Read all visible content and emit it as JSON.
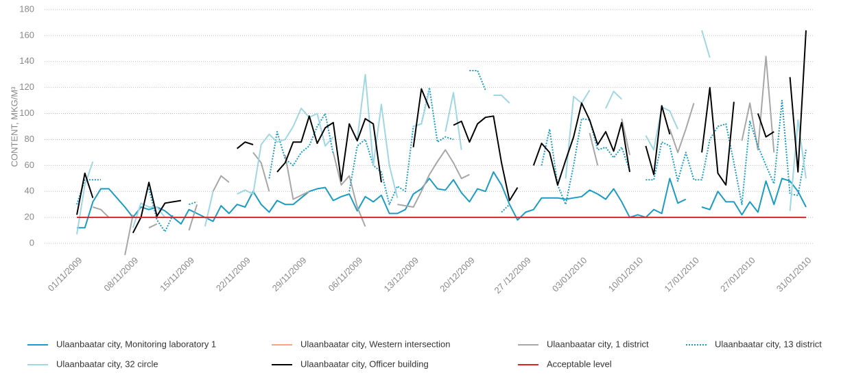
{
  "chart_data": {
    "type": "line",
    "y_label": "CONTENT, MKG/M³",
    "categories": [
      "01/11/2009",
      null,
      null,
      null,
      null,
      null,
      null,
      "08/11/2009",
      null,
      null,
      null,
      null,
      null,
      null,
      "15/11/2009",
      null,
      null,
      null,
      null,
      null,
      null,
      "22/11/2009",
      null,
      null,
      null,
      null,
      null,
      null,
      "29/11/2009",
      null,
      null,
      null,
      null,
      null,
      null,
      "06/11/2009",
      null,
      null,
      null,
      null,
      null,
      null,
      "13/12/2009",
      null,
      null,
      null,
      null,
      null,
      null,
      "20/12/2009",
      null,
      null,
      null,
      null,
      null,
      null,
      "27 /12/2009",
      null,
      null,
      null,
      null,
      null,
      null,
      "03/01/2010",
      null,
      null,
      null,
      null,
      null,
      null,
      "10/01/2010",
      null,
      null,
      null,
      null,
      null,
      null,
      "17/01/2010",
      null,
      null,
      null,
      null,
      null,
      null,
      "27/01/2010",
      null,
      null,
      null,
      null,
      null,
      null,
      "31/01/2010"
    ],
    "ylim": [
      0,
      180
    ],
    "yticks": [
      0,
      20,
      40,
      60,
      80,
      100,
      120,
      140,
      160,
      180
    ],
    "grid": true,
    "series": [
      {
        "name": "Ulaanbaatar city, Monitoring laboratory 1",
        "color": "#1a9bc4",
        "values": [
          12,
          12,
          32,
          42,
          42,
          35,
          28,
          20,
          28,
          26,
          28,
          25,
          20,
          15,
          26,
          23,
          20,
          17,
          29,
          23,
          30,
          28,
          40,
          30,
          24,
          33,
          30,
          30,
          35,
          40,
          42,
          43,
          33,
          36,
          38,
          25,
          36,
          32,
          37,
          23,
          23,
          26,
          38,
          42,
          50,
          42,
          41,
          49,
          39,
          32,
          42,
          40,
          55,
          45,
          30,
          18,
          24,
          26,
          35,
          35,
          35,
          34,
          35,
          36,
          41,
          38,
          34,
          42,
          32,
          20,
          22,
          20,
          26,
          23,
          50,
          31,
          34,
          null,
          28,
          26,
          40,
          32,
          32,
          22,
          32,
          24,
          48,
          30,
          50,
          48,
          40,
          28
        ]
      },
      {
        "name": "Ulaanbaatar city, Western intersection",
        "color": "#f4a582",
        "values": [
          null,
          null,
          null,
          null,
          null,
          null,
          null,
          null,
          null,
          null,
          null,
          null,
          null,
          null,
          null,
          null,
          null,
          null,
          null,
          null,
          null,
          null,
          null,
          null,
          null,
          null,
          null,
          null,
          null,
          null,
          null,
          null,
          null,
          null,
          null,
          null,
          null,
          null,
          null,
          null,
          null,
          null,
          null,
          null,
          null,
          null,
          null,
          null,
          null,
          null,
          null,
          null,
          null,
          null,
          null,
          null,
          null,
          null,
          null,
          null,
          null,
          null,
          null,
          null,
          null,
          null,
          null,
          null,
          null,
          null,
          null,
          null,
          null,
          null,
          null,
          null,
          null,
          null,
          null,
          null,
          null,
          null,
          null,
          null,
          null,
          null,
          null,
          null,
          null,
          null,
          null,
          null
        ]
      },
      {
        "name": "Ulaanbaatar city, 1 district",
        "color": "#a6a6a6",
        "values": [
          null,
          null,
          28,
          26,
          20,
          null,
          -9,
          22,
          null,
          12,
          15,
          null,
          null,
          null,
          10,
          30,
          null,
          40,
          52,
          47,
          null,
          null,
          70,
          62,
          40,
          null,
          68,
          34,
          37,
          40,
          null,
          null,
          70,
          45,
          52,
          28,
          13,
          null,
          null,
          null,
          30,
          29,
          28,
          40,
          53,
          63,
          72,
          62,
          50,
          53,
          null,
          null,
          null,
          null,
          null,
          null,
          null,
          null,
          null,
          null,
          null,
          null,
          null,
          null,
          85,
          60,
          null,
          null,
          96,
          68,
          null,
          null,
          null,
          null,
          88,
          70,
          88,
          108,
          null,
          null,
          null,
          null,
          null,
          79,
          108,
          72,
          144,
          70,
          null,
          72,
          null,
          42
        ]
      },
      {
        "name": "Ulaanbaatar city, 13 district",
        "color": "#1a9bc4",
        "dash": true,
        "values": [
          30,
          49,
          49,
          49,
          null,
          18,
          null,
          15,
          null,
          42,
          18,
          9,
          22,
          null,
          30,
          32,
          null,
          49,
          null,
          null,
          34,
          null,
          70,
          null,
          50,
          86,
          65,
          60,
          70,
          75,
          90,
          100,
          69,
          null,
          40,
          75,
          80,
          60,
          55,
          30,
          44,
          40,
          90,
          92,
          120,
          78,
          82,
          80,
          null,
          133,
          133,
          118,
          null,
          24,
          30,
          null,
          null,
          null,
          60,
          88,
          45,
          30,
          60,
          96,
          95,
          72,
          74,
          66,
          74,
          56,
          null,
          49,
          49,
          78,
          75,
          48,
          70,
          49,
          49,
          80,
          90,
          92,
          62,
          30,
          94,
          75,
          60,
          46,
          110,
          38,
          37,
          72
        ]
      },
      {
        "name": "Ulaanbaatar city, 32 circle",
        "color": "#9fd6e4",
        "values": [
          7,
          45,
          63,
          null,
          27,
          null,
          null,
          12,
          31,
          28,
          28,
          20,
          null,
          14,
          null,
          null,
          13,
          40,
          null,
          null,
          38,
          41,
          38,
          76,
          84,
          78,
          80,
          90,
          104,
          97,
          100,
          75,
          82,
          null,
          null,
          80,
          130,
          60,
          107,
          60,
          35,
          null,
          90,
          92,
          118,
          null,
          86,
          116,
          72,
          null,
          null,
          null,
          114,
          114,
          108,
          null,
          null,
          null,
          null,
          null,
          null,
          50,
          113,
          108,
          118,
          null,
          104,
          117,
          111,
          null,
          null,
          83,
          72,
          105,
          102,
          88,
          null,
          null,
          164,
          143,
          null,
          null,
          null,
          null,
          null,
          null,
          null,
          163,
          null,
          25,
          95,
          50
        ]
      },
      {
        "name": "Ulaanbaatar city, Officer building",
        "color": "#000000",
        "values": [
          22,
          54,
          35,
          null,
          null,
          null,
          null,
          8,
          20,
          47,
          21,
          31,
          32,
          33,
          null,
          85,
          null,
          null,
          null,
          null,
          73,
          78,
          76,
          null,
          null,
          55,
          62,
          78,
          78,
          98,
          77,
          89,
          93,
          48,
          92,
          79,
          96,
          92,
          47,
          null,
          null,
          null,
          74,
          119,
          104,
          null,
          null,
          91,
          94,
          78,
          92,
          97,
          98,
          62,
          33,
          43,
          null,
          60,
          77,
          70,
          45,
          64,
          82,
          108,
          95,
          76,
          86,
          71,
          93,
          55,
          null,
          75,
          53,
          106,
          84,
          null,
          null,
          null,
          70,
          120,
          54,
          45,
          109,
          null,
          null,
          100,
          82,
          86,
          null,
          128,
          55,
          164
        ]
      },
      {
        "name": "Acceptable level",
        "color": "#e02020",
        "values": [
          20,
          20,
          20,
          20,
          20,
          20,
          20,
          20,
          20,
          20,
          20,
          20,
          20,
          20,
          20,
          20,
          20,
          20,
          20,
          20,
          20,
          20,
          20,
          20,
          20,
          20,
          20,
          20,
          20,
          20,
          20,
          20,
          20,
          20,
          20,
          20,
          20,
          20,
          20,
          20,
          20,
          20,
          20,
          20,
          20,
          20,
          20,
          20,
          20,
          20,
          20,
          20,
          20,
          20,
          20,
          20,
          20,
          20,
          20,
          20,
          20,
          20,
          20,
          20,
          20,
          20,
          20,
          20,
          20,
          20,
          20,
          20,
          20,
          20,
          20,
          20,
          20,
          20,
          20,
          20,
          20,
          20,
          20,
          20,
          20,
          20,
          20,
          20,
          20,
          20,
          20,
          20
        ]
      }
    ]
  }
}
